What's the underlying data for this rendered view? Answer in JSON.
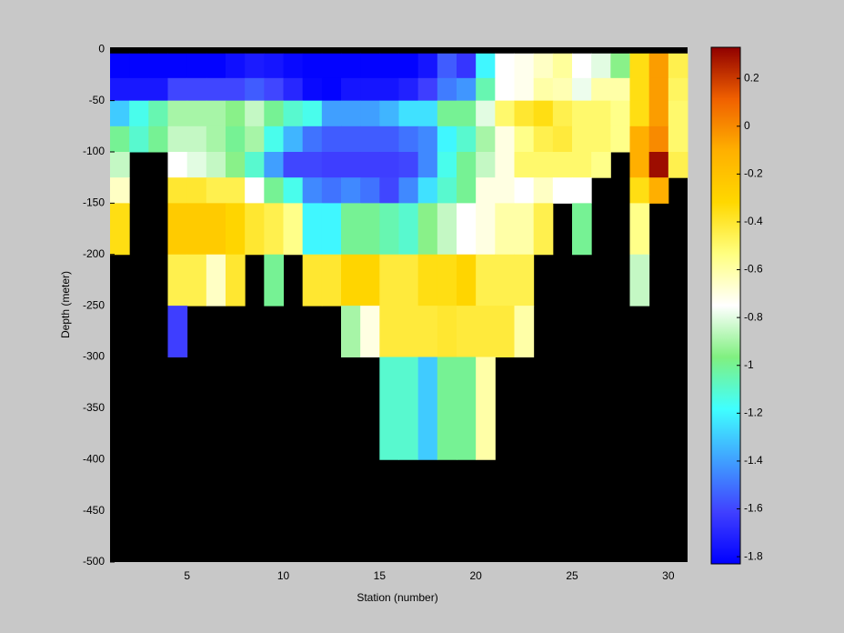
{
  "chart_data": {
    "type": "heatmap",
    "xlabel": "Station (number)",
    "ylabel": "Depth (meter)",
    "xlim": [
      1,
      31
    ],
    "ylim": [
      -500,
      2
    ],
    "xticks": [
      5,
      10,
      15,
      20,
      25,
      30
    ],
    "yticks": [
      0,
      -50,
      -100,
      -150,
      -200,
      -250,
      -300,
      -350,
      -400,
      -450,
      -500
    ],
    "x_edges": [
      1,
      2,
      3,
      4,
      5,
      6,
      7,
      8,
      9,
      10,
      11,
      12,
      13,
      14,
      15,
      16,
      17,
      18,
      19,
      20,
      21,
      22,
      23,
      24,
      25,
      26,
      27,
      28,
      29,
      30,
      31
    ],
    "y_edges": [
      -4,
      -28,
      -50,
      -75,
      -100,
      -125,
      -150,
      -200,
      -250,
      -300,
      -400
    ],
    "z": [
      [
        -1.82,
        -1.82,
        -1.82,
        -1.82,
        -1.82,
        -1.82,
        -1.78,
        -1.74,
        -1.76,
        -1.8,
        -1.82,
        -1.82,
        -1.82,
        -1.82,
        -1.82,
        -1.82,
        -1.76,
        -1.55,
        -1.65,
        -1.2,
        -0.75,
        -0.72,
        -0.65,
        -0.58,
        -0.75,
        -0.8,
        -0.95,
        -0.35,
        -0.05,
        -0.45
      ],
      [
        -1.75,
        -1.75,
        -1.75,
        -1.6,
        -1.6,
        -1.6,
        -1.6,
        -1.55,
        -1.6,
        -1.7,
        -1.8,
        -1.82,
        -1.76,
        -1.76,
        -1.76,
        -1.72,
        -1.62,
        -1.48,
        -1.42,
        -1.05,
        -0.75,
        -0.72,
        -0.6,
        -0.62,
        -0.78,
        -0.6,
        -0.6,
        -0.35,
        -0.05,
        -0.48
      ],
      [
        -1.3,
        -1.15,
        -1.05,
        -0.9,
        -0.9,
        -0.9,
        -0.95,
        -0.85,
        -1.0,
        -1.1,
        -1.15,
        -1.4,
        -1.4,
        -1.4,
        -1.35,
        -1.25,
        -1.25,
        -1.0,
        -1.0,
        -0.8,
        -0.5,
        -0.4,
        -0.35,
        -0.45,
        -0.5,
        -0.5,
        -0.55,
        -0.35,
        -0.05,
        -0.5
      ],
      [
        -1.0,
        -1.1,
        -1.0,
        -0.85,
        -0.85,
        -0.9,
        -1.0,
        -0.9,
        -1.15,
        -1.35,
        -1.5,
        -1.55,
        -1.55,
        -1.55,
        -1.55,
        -1.5,
        -1.45,
        -1.2,
        -1.1,
        -0.9,
        -0.7,
        -0.55,
        -0.45,
        -0.42,
        -0.5,
        -0.5,
        -0.55,
        -0.1,
        0.0,
        -0.5
      ],
      [
        -0.85,
        null,
        null,
        -0.75,
        -0.8,
        -0.85,
        -0.95,
        -1.1,
        -1.4,
        -1.6,
        -1.6,
        -1.62,
        -1.62,
        -1.62,
        -1.62,
        -1.6,
        -1.45,
        -1.15,
        -1.0,
        -0.85,
        -0.7,
        -0.5,
        -0.5,
        -0.5,
        -0.5,
        -0.55,
        null,
        -0.1,
        0.3,
        -0.45
      ],
      [
        -0.65,
        null,
        null,
        -0.4,
        -0.4,
        -0.45,
        -0.45,
        -0.75,
        -1.0,
        -1.15,
        -1.45,
        -1.5,
        -1.45,
        -1.5,
        -1.6,
        -1.45,
        -1.25,
        -1.1,
        -1.0,
        -0.7,
        -0.7,
        -0.75,
        -0.65,
        -0.75,
        -0.75,
        null,
        null,
        -0.35,
        -0.1,
        null
      ],
      [
        -0.35,
        null,
        null,
        -0.25,
        -0.25,
        -0.25,
        -0.3,
        -0.4,
        -0.45,
        -0.55,
        -1.2,
        -1.2,
        -1.0,
        -1.0,
        -1.05,
        -1.1,
        -0.95,
        -0.85,
        -0.75,
        -0.7,
        -0.6,
        -0.6,
        -0.45,
        null,
        -1.0,
        null,
        null,
        -0.55,
        null,
        null
      ],
      [
        null,
        null,
        null,
        -0.45,
        -0.45,
        -0.65,
        -0.4,
        null,
        -1.0,
        null,
        -0.4,
        -0.4,
        -0.3,
        -0.3,
        -0.42,
        -0.42,
        -0.35,
        -0.35,
        -0.3,
        -0.45,
        -0.45,
        -0.45,
        null,
        null,
        null,
        null,
        null,
        -0.85,
        null,
        null
      ],
      [
        null,
        null,
        null,
        -1.62,
        null,
        null,
        null,
        null,
        null,
        null,
        null,
        null,
        -0.9,
        -0.7,
        -0.42,
        -0.42,
        -0.42,
        -0.4,
        -0.42,
        -0.42,
        -0.42,
        -0.6,
        null,
        null,
        null,
        null,
        null,
        null,
        null,
        null
      ],
      [
        null,
        null,
        null,
        null,
        null,
        null,
        null,
        null,
        null,
        null,
        null,
        null,
        null,
        null,
        -1.1,
        -1.1,
        -1.3,
        -1.0,
        -1.0,
        -0.6,
        null,
        null,
        null,
        null,
        null,
        null,
        null,
        null,
        null,
        null
      ]
    ],
    "clim": [
      -1.83,
      0.33
    ],
    "colorbar_ticks": [
      0.2,
      0,
      -0.2,
      -0.4,
      -0.6,
      -0.8,
      -1,
      -1.2,
      -1.4,
      -1.6,
      -1.8
    ],
    "colormap": [
      "#0000ff",
      "#4040ff",
      "#40a0ff",
      "#40ffff",
      "#80f080",
      "#ffffff",
      "#ffff80",
      "#ffd800",
      "#ffb000",
      "#f06000",
      "#900000"
    ],
    "background": "#000000"
  }
}
